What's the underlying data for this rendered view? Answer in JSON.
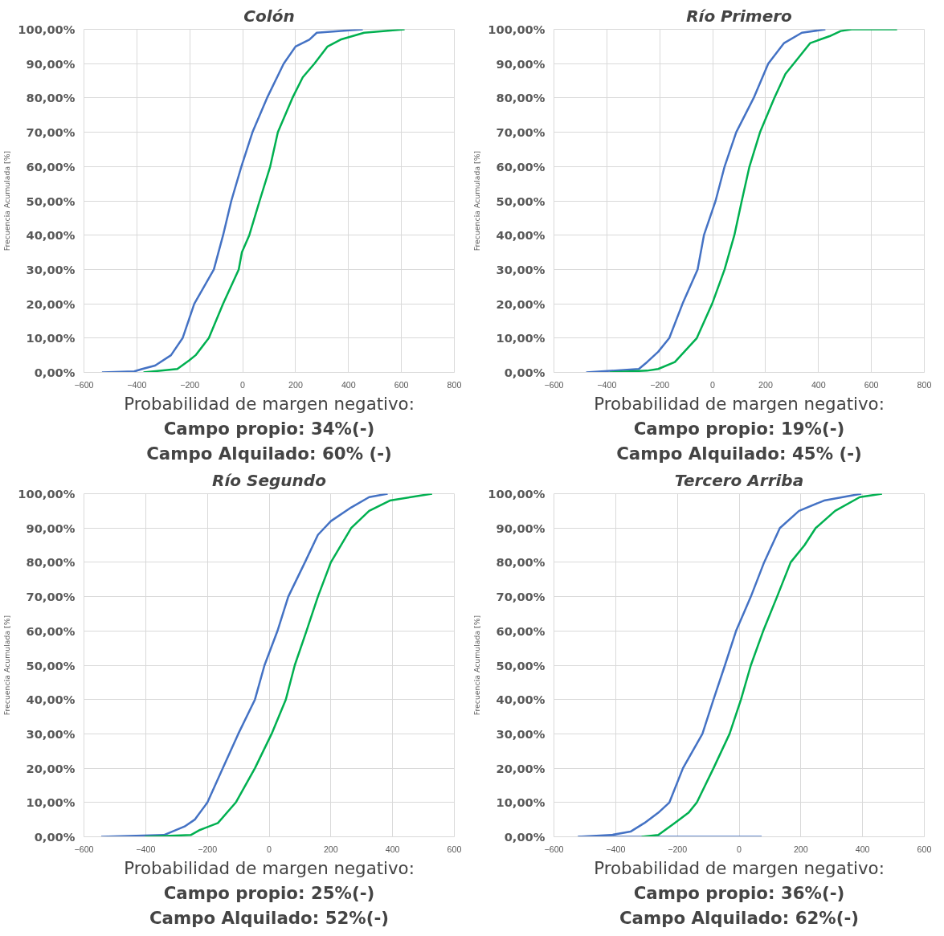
{
  "chart_data": [
    {
      "type": "line",
      "title": "Colón",
      "ylabel": "Frecuencia Acumulada [%]",
      "grid": true,
      "xlim": [
        -600,
        800
      ],
      "xticks": [
        -600,
        -400,
        -200,
        0,
        200,
        400,
        600,
        800
      ],
      "ylim": [
        0,
        100
      ],
      "yticks": [
        {
          "value": 0,
          "label": "0,00%"
        },
        {
          "value": 10,
          "label": "10,00%"
        },
        {
          "value": 20,
          "label": "20,00%"
        },
        {
          "value": 30,
          "label": "30,00%"
        },
        {
          "value": 40,
          "label": "40,00%"
        },
        {
          "value": 50,
          "label": "50,00%"
        },
        {
          "value": 60,
          "label": "60,00%"
        },
        {
          "value": 70,
          "label": "70,00%"
        },
        {
          "value": 80,
          "label": "80,00%"
        },
        {
          "value": 90,
          "label": "90,00%"
        },
        {
          "value": 100,
          "label": "100,00%"
        }
      ],
      "series": [
        {
          "color": "#4472c4",
          "x": [
            -532,
            -410,
            -380,
            -331,
            -271,
            -227,
            -183,
            -109,
            -74,
            -43,
            -5,
            37,
            92,
            155,
            200,
            252,
            280,
            454
          ],
          "values": [
            0,
            0.3,
            1,
            2,
            5,
            10,
            20,
            30,
            40,
            50,
            60,
            70,
            80,
            90,
            95,
            97,
            99,
            100
          ]
        },
        {
          "color": "#00b050",
          "x": [
            -375,
            -247,
            -202,
            -178,
            -128,
            -74,
            -15,
            -3,
            25,
            64,
            104,
            133,
            188,
            227,
            271,
            321,
            370,
            459,
            612
          ],
          "values": [
            0,
            1,
            3.5,
            5,
            10,
            20,
            30,
            35,
            40,
            50,
            60,
            70,
            80,
            86,
            90,
            95,
            97,
            99,
            100
          ]
        }
      ],
      "annotations": [
        "Probabilidad de margen negativo:",
        "Campo propio: 34%(-)",
        "Campo Alquilado: 60% (-)"
      ]
    },
    {
      "type": "line",
      "title": "Río Primero",
      "ylabel": "Frecuencia Acumulada [%]",
      "grid": true,
      "xlim": [
        -600,
        800
      ],
      "xticks": [
        -600,
        -400,
        -200,
        0,
        200,
        400,
        600,
        800
      ],
      "ylim": [
        0,
        100
      ],
      "yticks": [
        {
          "value": 0,
          "label": "0,00%"
        },
        {
          "value": 10,
          "label": "10,00%"
        },
        {
          "value": 20,
          "label": "20,00%"
        },
        {
          "value": 30,
          "label": "30,00%"
        },
        {
          "value": 40,
          "label": "40,00%"
        },
        {
          "value": 50,
          "label": "50,00%"
        },
        {
          "value": 60,
          "label": "60,00%"
        },
        {
          "value": 70,
          "label": "70,00%"
        },
        {
          "value": 80,
          "label": "80,00%"
        },
        {
          "value": 90,
          "label": "90,00%"
        },
        {
          "value": 100,
          "label": "100,00%"
        }
      ],
      "series": [
        {
          "color": "#4472c4",
          "x": [
            -478,
            -279,
            -248,
            -206,
            -164,
            -114,
            -57,
            -33,
            11,
            45,
            89,
            155,
            210,
            270,
            337,
            426
          ],
          "values": [
            0,
            1,
            3,
            6,
            10,
            20,
            30,
            40,
            50,
            60,
            70,
            80,
            90,
            96,
            99,
            100
          ]
        },
        {
          "color": "#00b050",
          "x": [
            -389,
            -248,
            -206,
            -143,
            -60,
            -2,
            45,
            82,
            110,
            139,
            179,
            233,
            275,
            327,
            369,
            442,
            484,
            525,
            697
          ],
          "values": [
            0,
            0.5,
            1,
            3,
            10,
            20,
            30,
            40,
            50,
            60,
            70,
            80,
            87,
            92,
            96,
            98,
            99.5,
            100,
            100
          ]
        }
      ],
      "annotations": [
        "Probabilidad de margen negativo:",
        "Campo propio: 19%(-)",
        "Campo Alquilado: 45% (-)"
      ]
    },
    {
      "type": "line",
      "title": "Río Segundo",
      "ylabel": "Frecuencia Acumulada [%]",
      "grid": true,
      "xlim": [
        -600,
        600
      ],
      "xticks": [
        -600,
        -400,
        -200,
        0,
        200,
        400,
        600
      ],
      "ylim": [
        0,
        100
      ],
      "yticks": [
        {
          "value": 0,
          "label": "0,00%"
        },
        {
          "value": 10,
          "label": "10,00%"
        },
        {
          "value": 20,
          "label": "20,00%"
        },
        {
          "value": 30,
          "label": "30,00%"
        },
        {
          "value": 40,
          "label": "40,00%"
        },
        {
          "value": 50,
          "label": "50,00%"
        },
        {
          "value": 60,
          "label": "60,00%"
        },
        {
          "value": 70,
          "label": "70,00%"
        },
        {
          "value": 80,
          "label": "80,00%"
        },
        {
          "value": 90,
          "label": "90,00%"
        },
        {
          "value": 100,
          "label": "100,00%"
        }
      ],
      "series": [
        {
          "color": "#4472c4",
          "x": [
            -544,
            -341,
            -274,
            -241,
            -200,
            -150,
            -100,
            -46,
            -15,
            27,
            62,
            116,
            158,
            200,
            266,
            324,
            384
          ],
          "values": [
            0,
            0.5,
            3,
            5,
            10,
            20,
            30,
            40,
            50,
            60,
            70,
            80,
            88,
            92,
            96,
            99,
            100
          ]
        },
        {
          "color": "#00b050",
          "x": [
            -403,
            -254,
            -224,
            -166,
            -108,
            -46,
            8,
            54,
            83,
            121,
            158,
            200,
            266,
            324,
            391,
            528
          ],
          "values": [
            0,
            0.5,
            2,
            4,
            10,
            20,
            30,
            40,
            50,
            60,
            70,
            80,
            90,
            95,
            98,
            100
          ]
        }
      ],
      "annotations": [
        "Probabilidad de margen negativo:",
        "Campo propio: 25%(-)",
        "Campo Alquilado: 52%(-)"
      ]
    },
    {
      "type": "line",
      "title": "Tercero Arriba",
      "ylabel": "Frecuencia Acumulada [%]",
      "grid": true,
      "xlim": [
        -600,
        600
      ],
      "xticks": [
        -600,
        -400,
        -200,
        0,
        200,
        400,
        600
      ],
      "ylim": [
        0,
        100
      ],
      "yticks": [
        {
          "value": 0,
          "label": "0,00%"
        },
        {
          "value": 10,
          "label": "10,00%"
        },
        {
          "value": 20,
          "label": "20,00%"
        },
        {
          "value": 30,
          "label": "30,00%"
        },
        {
          "value": 40,
          "label": "40,00%"
        },
        {
          "value": 50,
          "label": "50,00%"
        },
        {
          "value": 60,
          "label": "60,00%"
        },
        {
          "value": 70,
          "label": "70,00%"
        },
        {
          "value": 80,
          "label": "80,00%"
        },
        {
          "value": 90,
          "label": "90,00%"
        },
        {
          "value": 100,
          "label": "100,00%"
        }
      ],
      "series": [
        {
          "color": "#4472c4",
          "x": [
            -522,
            -415,
            -352,
            -307,
            -262,
            -226,
            -182,
            -119,
            -83,
            -46,
            -10,
            38,
            81,
            132,
            194,
            275,
            396
          ],
          "values": [
            0,
            0.5,
            1.5,
            4,
            7,
            10,
            20,
            30,
            40,
            50,
            60,
            70,
            80,
            90,
            95,
            98,
            100
          ]
        },
        {
          "color": "#4472c4",
          "x": [
            -522,
            73
          ],
          "values": [
            0,
            0
          ]
        },
        {
          "color": "#00b050",
          "x": [
            -316,
            -262,
            -209,
            -164,
            -137,
            -83,
            -31,
            6,
            38,
            78,
            123,
            167,
            212,
            248,
            311,
            391,
            463
          ],
          "values": [
            0,
            0.5,
            4,
            7,
            10,
            20,
            30,
            40,
            50,
            60,
            70,
            80,
            85,
            90,
            95,
            99,
            100
          ]
        }
      ],
      "annotations": [
        "Probabilidad de margen negativo:",
        "Campo propio: 36%(-)",
        "Campo Alquilado: 62%(-)"
      ]
    }
  ]
}
